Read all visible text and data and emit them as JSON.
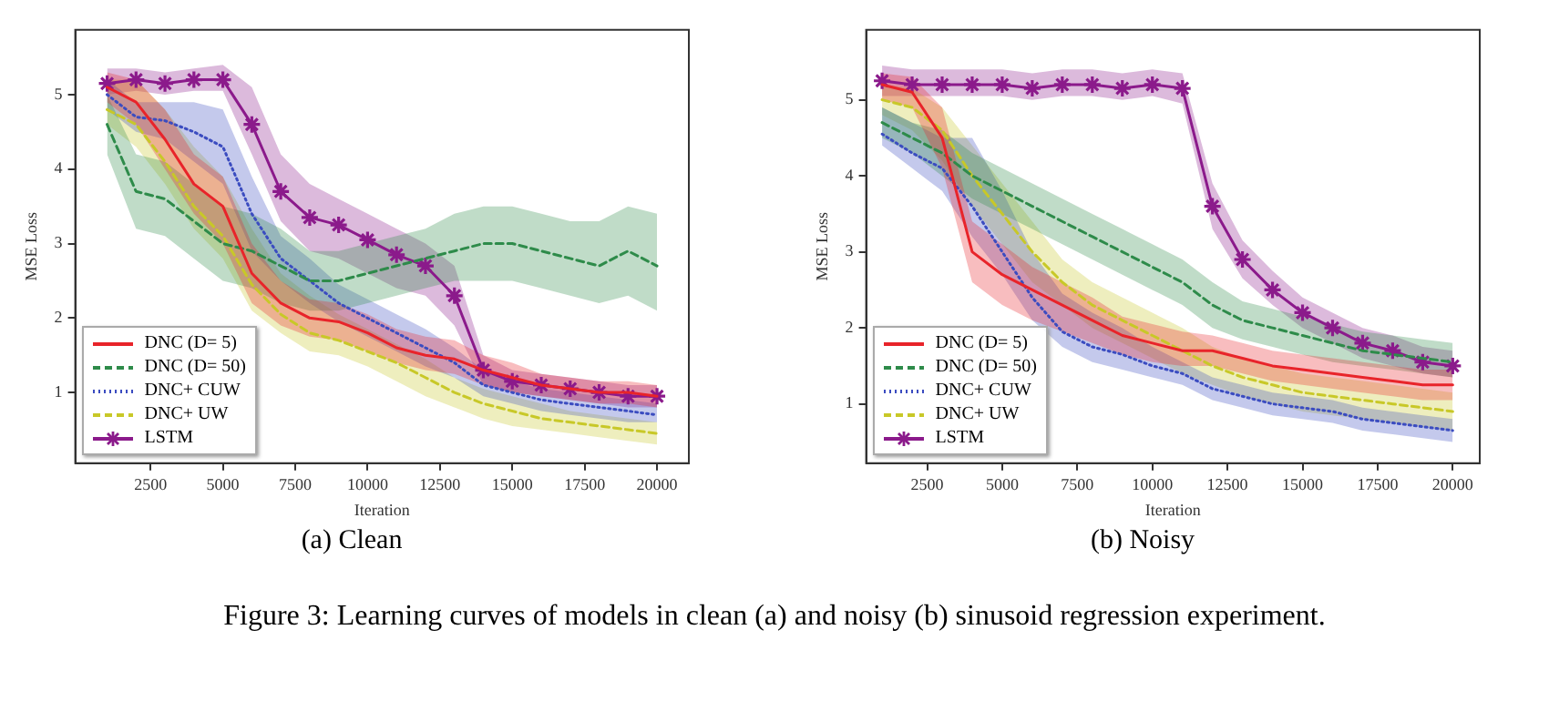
{
  "chart_data": [
    {
      "type": "line",
      "title": "(a) Clean",
      "xlabel": "Iteration",
      "ylabel": "MSE Loss",
      "xlim": [
        -100,
        21100
      ],
      "ylim": [
        0.05,
        5.87
      ],
      "xticks": [
        2500,
        5000,
        7500,
        10000,
        12500,
        15000,
        17500,
        20000
      ],
      "yticks": [
        1,
        2,
        3,
        4,
        5
      ],
      "grid": false,
      "legend": "bottom left",
      "annotations": [
        "Figure 3: Learning curves of models in clean (a) and noisy (b) sinusoid regression experiment."
      ],
      "x": [
        1000,
        2000,
        3000,
        4000,
        5000,
        6000,
        7000,
        8000,
        9000,
        10000,
        11000,
        12000,
        13000,
        14000,
        15000,
        16000,
        17000,
        18000,
        19000,
        20000
      ],
      "series": [
        {
          "name": "DNC (D= 5)",
          "color": "#e8242a",
          "line_style": "solid",
          "values": [
            5.1,
            4.9,
            4.4,
            3.8,
            3.5,
            2.6,
            2.2,
            2.0,
            1.95,
            1.8,
            1.6,
            1.5,
            1.45,
            1.3,
            1.2,
            1.1,
            1.05,
            1.0,
            1.0,
            0.95
          ],
          "lower": [
            4.9,
            4.6,
            4.0,
            3.4,
            3.0,
            2.2,
            1.9,
            1.75,
            1.7,
            1.55,
            1.4,
            1.3,
            1.25,
            1.1,
            1.0,
            0.95,
            0.9,
            0.85,
            0.85,
            0.8
          ],
          "upper": [
            5.3,
            5.2,
            4.8,
            4.2,
            3.9,
            3.0,
            2.5,
            2.25,
            2.2,
            2.05,
            1.85,
            1.75,
            1.7,
            1.5,
            1.4,
            1.25,
            1.2,
            1.15,
            1.15,
            1.1
          ]
        },
        {
          "name": "DNC (D= 50)",
          "color": "#2e8b4a",
          "line_style": "dashed",
          "values": [
            4.6,
            3.7,
            3.6,
            3.3,
            3.0,
            2.9,
            2.7,
            2.5,
            2.5,
            2.6,
            2.7,
            2.8,
            2.9,
            3.0,
            3.0,
            2.9,
            2.8,
            2.7,
            2.9,
            2.7
          ],
          "lower": [
            4.2,
            3.2,
            3.1,
            2.8,
            2.5,
            2.4,
            2.2,
            2.1,
            2.1,
            2.2,
            2.3,
            2.4,
            2.5,
            2.5,
            2.5,
            2.4,
            2.3,
            2.2,
            2.3,
            2.1
          ],
          "upper": [
            5.0,
            4.2,
            4.1,
            3.8,
            3.5,
            3.4,
            3.2,
            2.9,
            2.9,
            3.0,
            3.1,
            3.2,
            3.4,
            3.5,
            3.5,
            3.4,
            3.3,
            3.3,
            3.5,
            3.4
          ]
        },
        {
          "name": "DNC+ CUW",
          "color": "#3b4cc0",
          "line_style": "dotted",
          "values": [
            5.0,
            4.7,
            4.65,
            4.5,
            4.3,
            3.4,
            2.8,
            2.5,
            2.2,
            2.0,
            1.8,
            1.6,
            1.4,
            1.1,
            1.0,
            0.9,
            0.85,
            0.8,
            0.75,
            0.7
          ],
          "lower": [
            4.8,
            4.5,
            4.4,
            4.1,
            3.8,
            2.9,
            2.5,
            2.2,
            1.95,
            1.75,
            1.55,
            1.35,
            1.2,
            0.95,
            0.85,
            0.75,
            0.7,
            0.65,
            0.6,
            0.6
          ],
          "upper": [
            5.2,
            4.9,
            4.9,
            4.9,
            4.8,
            3.9,
            3.1,
            2.8,
            2.45,
            2.25,
            2.05,
            1.85,
            1.6,
            1.3,
            1.15,
            1.05,
            1.0,
            0.95,
            0.9,
            0.85
          ]
        },
        {
          "name": "DNC+ UW",
          "color": "#c8c828",
          "line_style": "dashed",
          "values": [
            4.8,
            4.6,
            4.1,
            3.5,
            3.1,
            2.45,
            2.05,
            1.8,
            1.7,
            1.55,
            1.4,
            1.2,
            1.0,
            0.85,
            0.75,
            0.65,
            0.6,
            0.55,
            0.5,
            0.45
          ],
          "lower": [
            4.6,
            4.3,
            3.8,
            3.2,
            2.8,
            2.1,
            1.8,
            1.55,
            1.5,
            1.35,
            1.15,
            0.95,
            0.8,
            0.65,
            0.55,
            0.5,
            0.45,
            0.4,
            0.35,
            0.3
          ],
          "upper": [
            5.2,
            5.2,
            4.8,
            4.3,
            3.9,
            3.2,
            2.6,
            2.3,
            2.05,
            1.85,
            1.65,
            1.45,
            1.2,
            1.05,
            0.95,
            0.85,
            0.75,
            0.7,
            0.65,
            0.6
          ]
        },
        {
          "name": "LSTM",
          "color": "#8b1a8b",
          "line_style": "solid",
          "marker": "cross",
          "values": [
            5.15,
            5.2,
            5.15,
            5.2,
            5.2,
            4.6,
            3.7,
            3.35,
            3.25,
            3.05,
            2.85,
            2.7,
            2.3,
            1.3,
            1.15,
            1.1,
            1.05,
            1.0,
            0.95,
            0.95
          ],
          "lower": [
            5.0,
            5.05,
            5.0,
            5.05,
            5.05,
            4.2,
            3.3,
            2.9,
            2.8,
            2.6,
            2.4,
            2.3,
            1.9,
            1.1,
            1.0,
            0.95,
            0.9,
            0.85,
            0.8,
            0.8
          ],
          "upper": [
            5.35,
            5.35,
            5.3,
            5.35,
            5.4,
            5.1,
            4.2,
            3.8,
            3.6,
            3.4,
            3.2,
            3.0,
            2.7,
            1.5,
            1.3,
            1.25,
            1.2,
            1.15,
            1.1,
            1.1
          ]
        }
      ]
    },
    {
      "type": "line",
      "title": "(b) Noisy",
      "xlabel": "Iteration",
      "ylabel": "MSE Loss",
      "xlim": [
        470,
        20900
      ],
      "ylim": [
        0.22,
        5.92
      ],
      "xticks": [
        2500,
        5000,
        7500,
        10000,
        12500,
        15000,
        17500,
        20000
      ],
      "yticks": [
        1,
        2,
        3,
        4,
        5
      ],
      "grid": false,
      "legend": "bottom left",
      "x": [
        1000,
        2000,
        3000,
        4000,
        5000,
        6000,
        7000,
        8000,
        9000,
        10000,
        11000,
        12000,
        13000,
        14000,
        15000,
        16000,
        17000,
        18000,
        19000,
        20000
      ],
      "series": [
        {
          "name": "DNC (D= 5)",
          "color": "#e8242a",
          "line_style": "solid",
          "values": [
            5.2,
            5.1,
            4.5,
            3.0,
            2.7,
            2.5,
            2.3,
            2.1,
            1.9,
            1.8,
            1.7,
            1.7,
            1.6,
            1.5,
            1.45,
            1.4,
            1.35,
            1.3,
            1.25,
            1.25
          ],
          "lower": [
            5.0,
            4.9,
            4.1,
            2.6,
            2.3,
            2.1,
            1.95,
            1.8,
            1.65,
            1.55,
            1.5,
            1.5,
            1.4,
            1.3,
            1.25,
            1.2,
            1.15,
            1.1,
            1.05,
            1.05
          ],
          "upper": [
            5.35,
            5.3,
            4.9,
            3.4,
            3.1,
            2.8,
            2.6,
            2.4,
            2.15,
            2.05,
            1.95,
            1.9,
            1.8,
            1.7,
            1.65,
            1.6,
            1.55,
            1.5,
            1.45,
            1.45
          ]
        },
        {
          "name": "DNC (D= 50)",
          "color": "#2e8b4a",
          "line_style": "dashed",
          "values": [
            4.7,
            4.5,
            4.3,
            4.0,
            3.8,
            3.6,
            3.4,
            3.2,
            3.0,
            2.8,
            2.6,
            2.3,
            2.1,
            2.0,
            1.9,
            1.8,
            1.7,
            1.65,
            1.6,
            1.55
          ],
          "lower": [
            4.5,
            4.3,
            4.0,
            3.7,
            3.5,
            3.3,
            3.1,
            2.9,
            2.7,
            2.5,
            2.3,
            2.0,
            1.85,
            1.75,
            1.65,
            1.55,
            1.5,
            1.45,
            1.4,
            1.35
          ],
          "upper": [
            4.9,
            4.7,
            4.6,
            4.3,
            4.1,
            3.9,
            3.7,
            3.5,
            3.3,
            3.1,
            2.9,
            2.6,
            2.35,
            2.25,
            2.15,
            2.05,
            1.95,
            1.9,
            1.85,
            1.8
          ]
        },
        {
          "name": "DNC+ CUW",
          "color": "#3b4cc0",
          "line_style": "dotted",
          "values": [
            4.55,
            4.3,
            4.1,
            3.6,
            3.0,
            2.4,
            1.95,
            1.75,
            1.65,
            1.5,
            1.4,
            1.2,
            1.1,
            1.0,
            0.95,
            0.9,
            0.8,
            0.75,
            0.7,
            0.65
          ],
          "lower": [
            4.4,
            4.1,
            3.8,
            3.2,
            2.7,
            2.1,
            1.75,
            1.55,
            1.45,
            1.35,
            1.25,
            1.05,
            0.95,
            0.85,
            0.8,
            0.75,
            0.65,
            0.6,
            0.55,
            0.5
          ],
          "upper": [
            4.9,
            4.7,
            4.5,
            4.5,
            3.8,
            3.0,
            2.45,
            2.2,
            2.0,
            1.75,
            1.55,
            1.35,
            1.25,
            1.15,
            1.1,
            1.05,
            0.95,
            0.9,
            0.85,
            0.8
          ]
        },
        {
          "name": "DNC+ UW",
          "color": "#c8c828",
          "line_style": "dashed",
          "values": [
            5.0,
            4.9,
            4.6,
            4.0,
            3.5,
            3.0,
            2.6,
            2.3,
            2.1,
            1.9,
            1.7,
            1.5,
            1.35,
            1.25,
            1.15,
            1.1,
            1.05,
            1.0,
            0.95,
            0.9
          ],
          "lower": [
            4.8,
            4.6,
            4.2,
            3.6,
            3.1,
            2.6,
            2.3,
            2.0,
            1.8,
            1.6,
            1.4,
            1.25,
            1.1,
            1.0,
            0.9,
            0.85,
            0.8,
            0.75,
            0.7,
            0.65
          ],
          "upper": [
            5.2,
            5.15,
            4.9,
            4.4,
            3.9,
            3.4,
            2.9,
            2.6,
            2.4,
            2.2,
            2.0,
            1.75,
            1.6,
            1.5,
            1.4,
            1.35,
            1.3,
            1.25,
            1.2,
            1.15
          ]
        },
        {
          "name": "LSTM",
          "color": "#8b1a8b",
          "line_style": "solid",
          "marker": "cross",
          "values": [
            5.25,
            5.2,
            5.2,
            5.2,
            5.2,
            5.15,
            5.2,
            5.2,
            5.15,
            5.2,
            5.15,
            3.6,
            2.9,
            2.5,
            2.2,
            2.0,
            1.8,
            1.7,
            1.55,
            1.5
          ],
          "lower": [
            5.05,
            5.05,
            5.05,
            5.05,
            5.05,
            5.0,
            5.05,
            5.05,
            5.0,
            5.05,
            4.95,
            3.3,
            2.65,
            2.3,
            2.0,
            1.8,
            1.6,
            1.5,
            1.4,
            1.35
          ],
          "upper": [
            5.45,
            5.4,
            5.4,
            5.4,
            5.4,
            5.35,
            5.4,
            5.4,
            5.35,
            5.4,
            5.35,
            3.9,
            3.15,
            2.75,
            2.4,
            2.2,
            2.0,
            1.9,
            1.75,
            1.7
          ]
        }
      ]
    }
  ]
}
